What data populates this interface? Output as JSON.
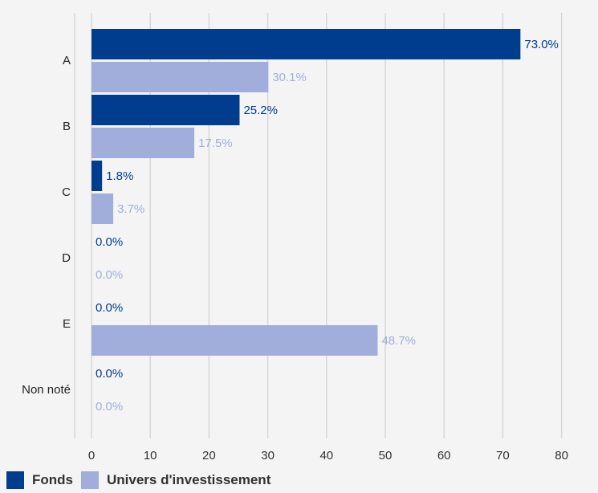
{
  "chart_data": {
    "type": "bar",
    "orientation": "horizontal",
    "categories": [
      "A",
      "B",
      "C",
      "D",
      "E",
      "Non noté"
    ],
    "series": [
      {
        "name": "Fonds",
        "values": [
          73.0,
          25.2,
          1.8,
          0.0,
          0.0,
          0.0
        ],
        "labels": [
          "73.0%",
          "25.2%",
          "1.8%",
          "0.0%",
          "0.0%",
          "0.0%"
        ],
        "color": "#003d8f"
      },
      {
        "name": "Univers d'investissement",
        "values": [
          30.1,
          17.5,
          3.7,
          0.0,
          48.7,
          0.0
        ],
        "labels": [
          "30.1%",
          "17.5%",
          "3.7%",
          "0.0%",
          "48.7%",
          "0.0%"
        ],
        "color": "#a1aedb"
      }
    ],
    "x_ticks": [
      "0",
      "10",
      "20",
      "30",
      "40",
      "50",
      "60",
      "70",
      "80"
    ],
    "xlim": [
      0,
      80
    ],
    "grid": true,
    "legend_position": "bottom-left",
    "title": "",
    "xlabel": "",
    "ylabel": ""
  }
}
